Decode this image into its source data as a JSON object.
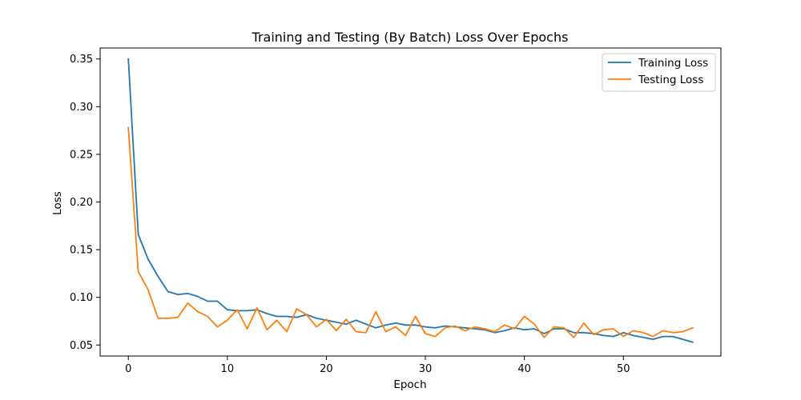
{
  "chart_data": {
    "type": "line",
    "title": "Training and Testing (By Batch) Loss Over Epochs",
    "xlabel": "Epoch",
    "ylabel": "Loss",
    "xlim": [
      -2.85,
      59.85
    ],
    "ylim": [
      0.0385,
      0.3615
    ],
    "xticks": [
      0,
      10,
      20,
      30,
      40,
      50
    ],
    "yticks": [
      0.05,
      0.1,
      0.15,
      0.2,
      0.25,
      0.3,
      0.35
    ],
    "ytick_labels": [
      "0.05",
      "0.10",
      "0.15",
      "0.20",
      "0.25",
      "0.30",
      "0.35"
    ],
    "grid": false,
    "legend_position": "top-right",
    "x": [
      0,
      1,
      2,
      3,
      4,
      5,
      6,
      7,
      8,
      9,
      10,
      11,
      12,
      13,
      14,
      15,
      16,
      17,
      18,
      19,
      20,
      21,
      22,
      23,
      24,
      25,
      26,
      27,
      28,
      29,
      30,
      31,
      32,
      33,
      34,
      35,
      36,
      37,
      38,
      39,
      40,
      41,
      42,
      43,
      44,
      45,
      46,
      47,
      48,
      49,
      50,
      51,
      52,
      53,
      54,
      55,
      56,
      57
    ],
    "series": [
      {
        "name": "Training Loss",
        "color": "#1f77b4",
        "values": [
          0.35,
          0.166,
          0.14,
          0.122,
          0.106,
          0.103,
          0.104,
          0.101,
          0.096,
          0.096,
          0.087,
          0.086,
          0.086,
          0.087,
          0.083,
          0.08,
          0.08,
          0.079,
          0.082,
          0.078,
          0.076,
          0.074,
          0.072,
          0.076,
          0.072,
          0.068,
          0.071,
          0.073,
          0.071,
          0.071,
          0.069,
          0.068,
          0.07,
          0.069,
          0.068,
          0.067,
          0.066,
          0.063,
          0.065,
          0.068,
          0.066,
          0.067,
          0.062,
          0.067,
          0.067,
          0.063,
          0.063,
          0.062,
          0.06,
          0.059,
          0.063,
          0.06,
          0.058,
          0.056,
          0.059,
          0.059,
          0.056,
          0.053
        ]
      },
      {
        "name": "Testing Loss",
        "color": "#ff7f0e",
        "values": [
          0.278,
          0.127,
          0.108,
          0.078,
          0.078,
          0.079,
          0.094,
          0.085,
          0.08,
          0.069,
          0.076,
          0.087,
          0.067,
          0.089,
          0.066,
          0.076,
          0.064,
          0.088,
          0.082,
          0.069,
          0.077,
          0.065,
          0.077,
          0.064,
          0.063,
          0.085,
          0.064,
          0.069,
          0.06,
          0.08,
          0.062,
          0.059,
          0.068,
          0.07,
          0.065,
          0.069,
          0.067,
          0.064,
          0.071,
          0.067,
          0.08,
          0.072,
          0.058,
          0.069,
          0.068,
          0.058,
          0.073,
          0.061,
          0.066,
          0.067,
          0.059,
          0.065,
          0.063,
          0.059,
          0.065,
          0.063,
          0.064,
          0.068
        ]
      }
    ]
  }
}
